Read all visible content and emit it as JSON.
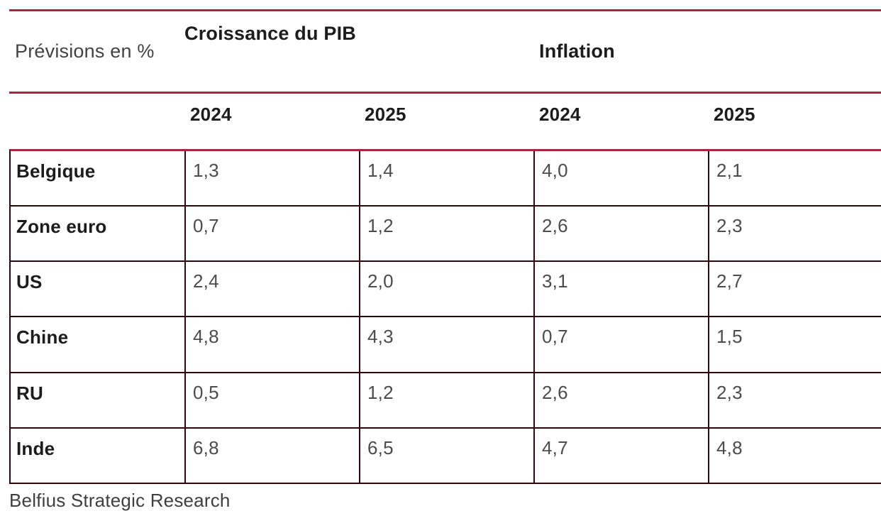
{
  "colors": {
    "accent_rule": "#A62543",
    "grid_border": "#2E070D",
    "heading_text": "#1c1c1e",
    "value_text": "#4c4c4c",
    "caption_text": "#3f3f3f",
    "background": "#ffffff"
  },
  "table": {
    "corner_label": "Prévisions en %",
    "groups": [
      {
        "label": "Croissance du PIB",
        "years": [
          "2024",
          "2025"
        ]
      },
      {
        "label": "Inflation",
        "years": [
          "2024",
          "2025"
        ]
      }
    ],
    "rows": [
      {
        "label": "Belgique",
        "values": [
          "1,3",
          "1,4",
          "4,0",
          "2,1"
        ]
      },
      {
        "label": "Zone euro",
        "values": [
          "0,7",
          "1,2",
          "2,6",
          "2,3"
        ]
      },
      {
        "label": "US",
        "values": [
          "2,4",
          "2,0",
          "3,1",
          "2,7"
        ]
      },
      {
        "label": "Chine",
        "values": [
          "4,8",
          "4,3",
          "0,7",
          "1,5"
        ]
      },
      {
        "label": "RU",
        "values": [
          "0,5",
          "1,2",
          "2,6",
          "2,3"
        ]
      },
      {
        "label": "Inde",
        "values": [
          "6,8",
          "6,5",
          "4,7",
          "4,8"
        ]
      }
    ]
  },
  "footer": {
    "source": "Belfius Strategic Research"
  }
}
